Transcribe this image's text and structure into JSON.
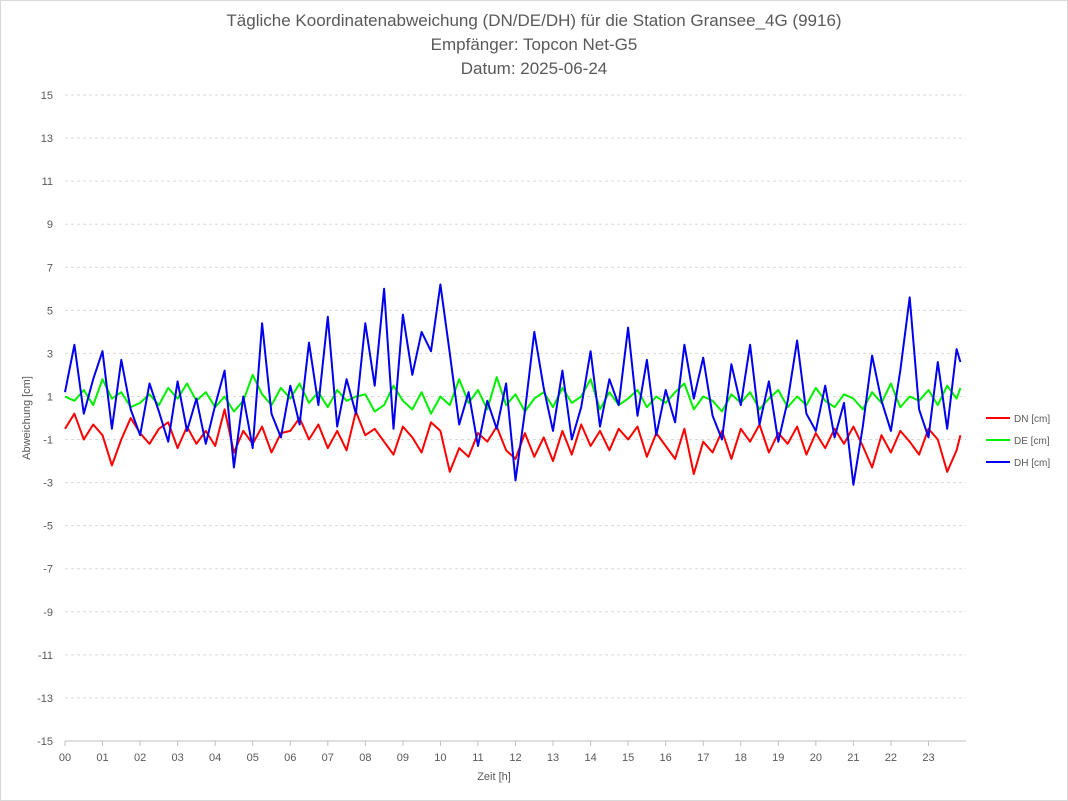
{
  "chart_data": {
    "type": "line",
    "title": [
      "Tägliche Koordinatenabweichung (DN/DE/DH) für die Station Gransee_4G (9916)",
      "Empfänger: Topcon Net-G5",
      "Datum: 2025-06-24"
    ],
    "xlabel": "Zeit [h]",
    "ylabel": "Abweichung [cm]",
    "xlim": [
      0,
      24
    ],
    "ylim": [
      -15,
      15
    ],
    "x_ticks": [
      "00",
      "01",
      "02",
      "03",
      "04",
      "05",
      "06",
      "07",
      "08",
      "09",
      "10",
      "11",
      "12",
      "13",
      "14",
      "15",
      "16",
      "17",
      "18",
      "19",
      "20",
      "21",
      "22",
      "23"
    ],
    "y_ticks": [
      15,
      13,
      11,
      9,
      7,
      5,
      3,
      1,
      -1,
      -3,
      -5,
      -7,
      -9,
      -11,
      -13,
      -15
    ],
    "grid": "horizontal dashed",
    "legend_position": "right",
    "series": [
      {
        "name": "DN [cm]",
        "color": "#ff0000",
        "x": [
          0.0,
          0.25,
          0.5,
          0.75,
          1.0,
          1.25,
          1.5,
          1.75,
          2.0,
          2.25,
          2.5,
          2.75,
          3.0,
          3.25,
          3.5,
          3.75,
          4.0,
          4.25,
          4.5,
          4.75,
          5.0,
          5.25,
          5.5,
          5.75,
          6.0,
          6.25,
          6.5,
          6.75,
          7.0,
          7.25,
          7.5,
          7.75,
          8.0,
          8.25,
          8.5,
          8.75,
          9.0,
          9.25,
          9.5,
          9.75,
          10.0,
          10.25,
          10.5,
          10.75,
          11.0,
          11.25,
          11.5,
          11.75,
          12.0,
          12.25,
          12.5,
          12.75,
          13.0,
          13.25,
          13.5,
          13.75,
          14.0,
          14.25,
          14.5,
          14.75,
          15.0,
          15.25,
          15.5,
          15.75,
          16.0,
          16.25,
          16.5,
          16.75,
          17.0,
          17.25,
          17.5,
          17.75,
          18.0,
          18.25,
          18.5,
          18.75,
          19.0,
          19.25,
          19.5,
          19.75,
          20.0,
          20.25,
          20.5,
          20.75,
          21.0,
          21.25,
          21.5,
          21.75,
          22.0,
          22.25,
          22.5,
          22.75,
          23.0,
          23.25,
          23.5,
          23.75,
          23.85
        ],
        "values": [
          -0.5,
          0.2,
          -1.0,
          -0.3,
          -0.8,
          -2.2,
          -1.0,
          0.0,
          -0.7,
          -1.2,
          -0.5,
          -0.2,
          -1.4,
          -0.4,
          -1.2,
          -0.6,
          -1.3,
          0.4,
          -1.6,
          -0.6,
          -1.2,
          -0.4,
          -1.6,
          -0.7,
          -0.6,
          0.0,
          -1.0,
          -0.3,
          -1.4,
          -0.6,
          -1.5,
          0.3,
          -0.8,
          -0.5,
          -1.1,
          -1.7,
          -0.4,
          -0.9,
          -1.6,
          -0.2,
          -0.6,
          -2.5,
          -1.4,
          -1.8,
          -0.7,
          -1.1,
          -0.4,
          -1.5,
          -1.9,
          -0.7,
          -1.8,
          -0.9,
          -2.0,
          -0.6,
          -1.7,
          -0.3,
          -1.3,
          -0.6,
          -1.5,
          -0.5,
          -1.0,
          -0.4,
          -1.8,
          -0.7,
          -1.3,
          -1.9,
          -0.5,
          -2.6,
          -1.1,
          -1.6,
          -0.6,
          -1.9,
          -0.5,
          -1.1,
          -0.3,
          -1.6,
          -0.7,
          -1.2,
          -0.4,
          -1.7,
          -0.7,
          -1.4,
          -0.5,
          -1.2,
          -0.4,
          -1.3,
          -2.3,
          -0.8,
          -1.6,
          -0.6,
          -1.1,
          -1.7,
          -0.5,
          -1.0,
          -2.5,
          -1.5,
          -0.8
        ]
      },
      {
        "name": "DE [cm]",
        "color": "#00ee00",
        "x": [
          0.0,
          0.25,
          0.5,
          0.75,
          1.0,
          1.25,
          1.5,
          1.75,
          2.0,
          2.25,
          2.5,
          2.75,
          3.0,
          3.25,
          3.5,
          3.75,
          4.0,
          4.25,
          4.5,
          4.75,
          5.0,
          5.25,
          5.5,
          5.75,
          6.0,
          6.25,
          6.5,
          6.75,
          7.0,
          7.25,
          7.5,
          7.75,
          8.0,
          8.25,
          8.5,
          8.75,
          9.0,
          9.25,
          9.5,
          9.75,
          10.0,
          10.25,
          10.5,
          10.75,
          11.0,
          11.25,
          11.5,
          11.75,
          12.0,
          12.25,
          12.5,
          12.75,
          13.0,
          13.25,
          13.5,
          13.75,
          14.0,
          14.25,
          14.5,
          14.75,
          15.0,
          15.25,
          15.5,
          15.75,
          16.0,
          16.25,
          16.5,
          16.75,
          17.0,
          17.25,
          17.5,
          17.75,
          18.0,
          18.25,
          18.5,
          18.75,
          19.0,
          19.25,
          19.5,
          19.75,
          20.0,
          20.25,
          20.5,
          20.75,
          21.0,
          21.25,
          21.5,
          21.75,
          22.0,
          22.25,
          22.5,
          22.75,
          23.0,
          23.25,
          23.5,
          23.75,
          23.85
        ],
        "values": [
          1.0,
          0.8,
          1.3,
          0.6,
          1.8,
          0.9,
          1.2,
          0.5,
          0.7,
          1.1,
          0.6,
          1.4,
          0.9,
          1.6,
          0.8,
          1.2,
          0.5,
          1.0,
          0.3,
          0.8,
          2.0,
          1.1,
          0.6,
          1.4,
          0.9,
          1.6,
          0.7,
          1.2,
          0.5,
          1.3,
          0.8,
          1.0,
          1.1,
          0.3,
          0.6,
          1.5,
          0.8,
          0.4,
          1.2,
          0.2,
          1.0,
          0.6,
          1.8,
          0.7,
          1.3,
          0.4,
          1.9,
          0.6,
          1.1,
          0.3,
          0.9,
          1.2,
          0.5,
          1.4,
          0.7,
          1.0,
          1.8,
          0.4,
          1.2,
          0.6,
          0.9,
          1.3,
          0.5,
          1.0,
          0.7,
          1.2,
          1.6,
          0.4,
          1.0,
          0.8,
          0.3,
          1.1,
          0.7,
          1.2,
          0.4,
          0.9,
          1.3,
          0.5,
          1.0,
          0.6,
          1.4,
          0.8,
          0.5,
          1.1,
          0.9,
          0.4,
          1.2,
          0.7,
          1.6,
          0.5,
          1.0,
          0.8,
          1.3,
          0.6,
          1.5,
          0.9,
          1.4
        ]
      },
      {
        "name": "DH [cm]",
        "color": "#0000ee",
        "x": [
          0.0,
          0.25,
          0.5,
          0.75,
          1.0,
          1.25,
          1.5,
          1.75,
          2.0,
          2.25,
          2.5,
          2.75,
          3.0,
          3.25,
          3.5,
          3.75,
          4.0,
          4.25,
          4.5,
          4.75,
          5.0,
          5.25,
          5.5,
          5.75,
          6.0,
          6.25,
          6.5,
          6.75,
          7.0,
          7.25,
          7.5,
          7.75,
          8.0,
          8.25,
          8.5,
          8.75,
          9.0,
          9.25,
          9.5,
          9.75,
          10.0,
          10.25,
          10.5,
          10.75,
          11.0,
          11.25,
          11.5,
          11.75,
          12.0,
          12.25,
          12.5,
          12.75,
          13.0,
          13.25,
          13.5,
          13.75,
          14.0,
          14.25,
          14.5,
          14.75,
          15.0,
          15.25,
          15.5,
          15.75,
          16.0,
          16.25,
          16.5,
          16.75,
          17.0,
          17.25,
          17.5,
          17.75,
          18.0,
          18.25,
          18.5,
          18.75,
          19.0,
          19.25,
          19.5,
          19.75,
          20.0,
          20.25,
          20.5,
          20.75,
          21.0,
          21.25,
          21.5,
          21.75,
          22.0,
          22.25,
          22.5,
          22.75,
          23.0,
          23.25,
          23.5,
          23.75,
          23.85
        ],
        "values": [
          1.2,
          3.4,
          0.2,
          1.8,
          3.1,
          -0.5,
          2.7,
          0.4,
          -0.8,
          1.6,
          0.3,
          -1.1,
          1.7,
          -0.6,
          0.9,
          -1.2,
          0.6,
          2.2,
          -2.3,
          1.0,
          -1.4,
          4.4,
          0.2,
          -0.9,
          1.5,
          -0.3,
          3.5,
          0.6,
          4.7,
          -0.4,
          1.8,
          0.2,
          4.4,
          1.5,
          6.0,
          -0.5,
          4.8,
          2.0,
          4.0,
          3.1,
          6.2,
          3.0,
          -0.3,
          1.2,
          -1.3,
          0.8,
          -0.5,
          1.6,
          -2.9,
          0.3,
          4.0,
          1.4,
          -0.6,
          2.2,
          -1.0,
          0.5,
          3.1,
          -0.4,
          1.8,
          0.6,
          4.2,
          0.1,
          2.7,
          -0.8,
          1.3,
          -0.2,
          3.4,
          0.9,
          2.8,
          0.1,
          -1.0,
          2.5,
          0.6,
          3.4,
          -0.3,
          1.7,
          -1.1,
          0.8,
          3.6,
          0.2,
          -0.6,
          1.5,
          -0.9,
          0.7,
          -3.1,
          -0.4,
          2.9,
          0.8,
          -0.6,
          2.2,
          5.6,
          0.4,
          -0.9,
          2.6,
          -0.5,
          3.2,
          2.6
        ]
      }
    ]
  }
}
